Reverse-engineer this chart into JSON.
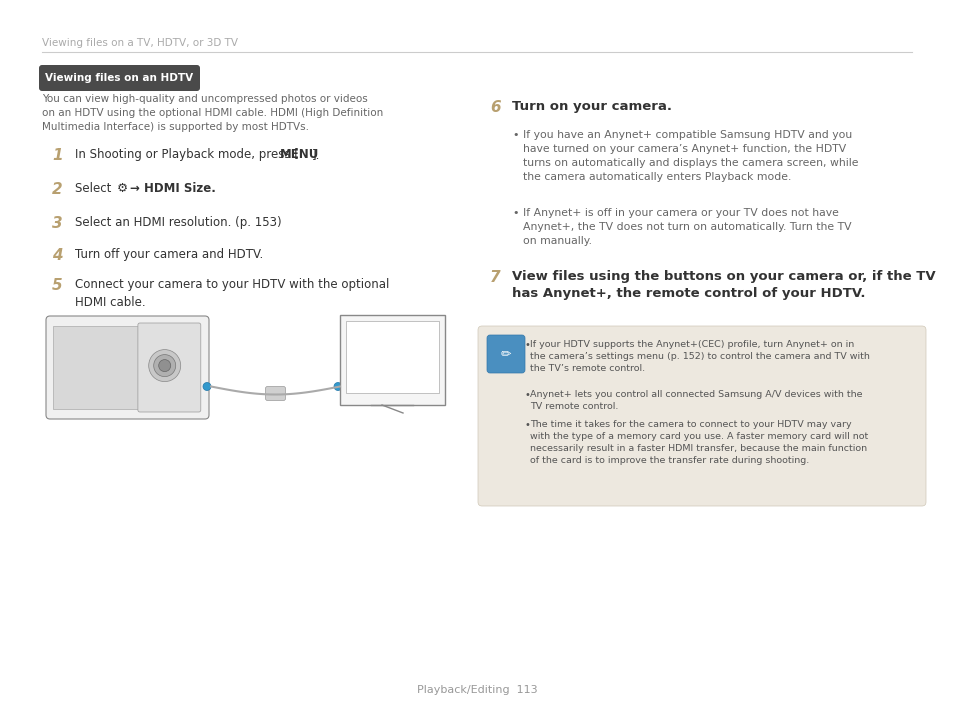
{
  "bg_color": "#ffffff",
  "header_text": "Viewing files on a TV, HDTV, or 3D TV",
  "header_color": "#aaaaaa",
  "section_badge_text": "Viewing files on an HDTV",
  "section_badge_bg": "#4a4a4a",
  "section_badge_color": "#ffffff",
  "intro_text": "You can view high-quality and uncompressed photos or videos\non an HDTV using the optional HDMI cable. HDMI (High Definition\nMultimedia Interface) is supported by most HDTVs.",
  "intro_color": "#666666",
  "step_num_color": "#b8a070",
  "step_text_color": "#333333",
  "bullet_text_color": "#666666",
  "note_box_bg": "#ede8df",
  "note_icon_bg": "#4a8fc0",
  "note_text_color": "#555555",
  "footer_text": "Playback/Editing  113",
  "footer_color": "#999999",
  "note_bullets": [
    "If your HDTV supports the Anynet+(CEC) profile, turn Anynet+ on in\nthe camera’s settings menu (p. 152) to control the camera and TV with\nthe TV’s remote control.",
    "Anynet+ lets you control all connected Samsung A/V devices with the\nTV remote control.",
    "The time it takes for the camera to connect to your HDTV may vary\nwith the type of a memory card you use. A faster memory card will not\nnecessarily result in a faster HDMI transfer, because the main function\nof the card is to improve the transfer rate during shooting."
  ]
}
